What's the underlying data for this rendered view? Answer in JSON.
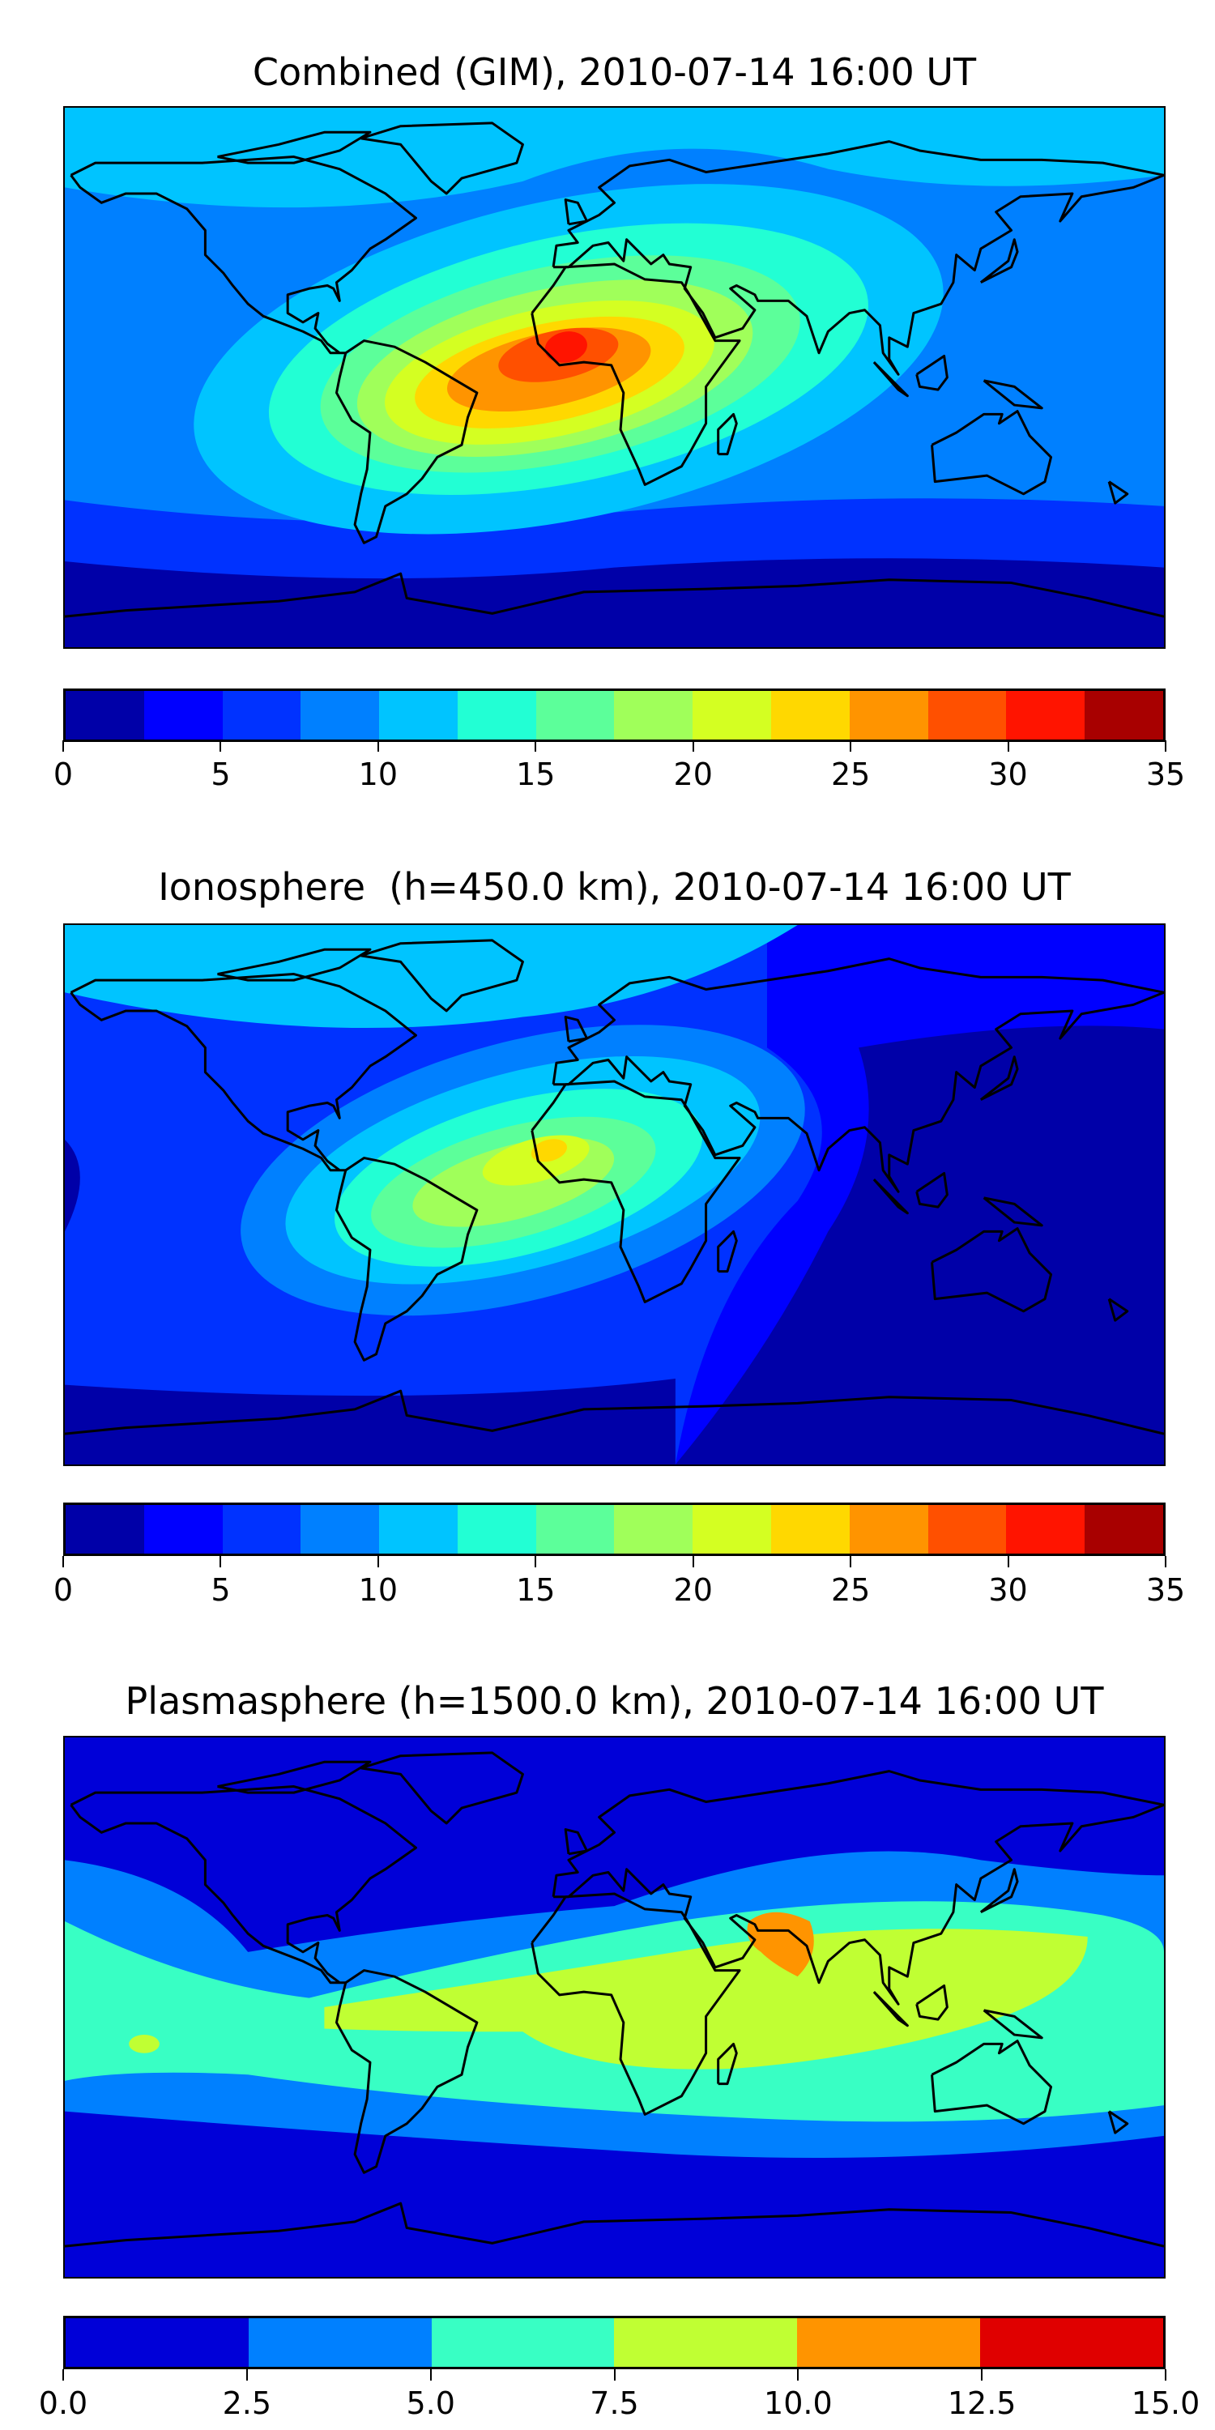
{
  "chart_data": [
    {
      "type": "heatmap",
      "title": "Combined (GIM), 2010-07-14 16:00 UT",
      "colorbar": {
        "range": [
          0,
          35
        ],
        "ticks": [
          "0",
          "5",
          "10",
          "15",
          "20",
          "25",
          "30",
          "35"
        ],
        "tick_values": [
          0,
          5,
          10,
          15,
          20,
          25,
          30,
          35
        ],
        "levels": [
          0,
          2.5,
          5,
          7.5,
          10,
          12.5,
          15,
          17.5,
          20,
          22.5,
          25,
          27.5,
          30,
          32.5,
          35
        ],
        "colors": [
          "#0000a8",
          "#0000ff",
          "#0032ff",
          "#0080ff",
          "#00c4ff",
          "#22ffd4",
          "#5cff9a",
          "#a0ff5a",
          "#d4ff22",
          "#ffd800",
          "#ff9400",
          "#ff5000",
          "#ff1400",
          "#a80000"
        ]
      },
      "max_region": "equatorial Atlantic / South America – West Africa, peak ~30-32.5",
      "xlabel": "",
      "ylabel": ""
    },
    {
      "type": "heatmap",
      "title": "Ionosphere  (h=450.0 km), 2010-07-14 16:00 UT",
      "colorbar": {
        "range": [
          0,
          35
        ],
        "ticks": [
          "0",
          "5",
          "10",
          "15",
          "20",
          "25",
          "30",
          "35"
        ],
        "tick_values": [
          0,
          5,
          10,
          15,
          20,
          25,
          30,
          35
        ],
        "levels": [
          0,
          2.5,
          5,
          7.5,
          10,
          12.5,
          15,
          17.5,
          20,
          22.5,
          25,
          27.5,
          30,
          32.5,
          35
        ],
        "colors": [
          "#0000a8",
          "#0000ff",
          "#0032ff",
          "#0080ff",
          "#00c4ff",
          "#22ffd4",
          "#5cff9a",
          "#a0ff5a",
          "#d4ff22",
          "#ffd800",
          "#ff9400",
          "#ff5000",
          "#ff1400",
          "#a80000"
        ]
      },
      "max_region": "equatorial Atlantic, peak ~22.5-25",
      "xlabel": "",
      "ylabel": ""
    },
    {
      "type": "heatmap",
      "title": "Plasmasphere (h=1500.0 km), 2010-07-14 16:00 UT",
      "colorbar": {
        "range": [
          0,
          15
        ],
        "ticks": [
          "0.0",
          "2.5",
          "5.0",
          "7.5",
          "10.0",
          "12.5",
          "15.0"
        ],
        "tick_values": [
          0,
          2.5,
          5,
          7.5,
          10,
          12.5,
          15
        ],
        "levels": [
          0,
          2.5,
          5,
          7.5,
          10,
          12.5,
          15
        ],
        "colors": [
          "#0000d8",
          "#0080ff",
          "#38ffc4",
          "#c0ff33",
          "#ff9400",
          "#e00000"
        ]
      },
      "max_region": "Arabian Sea, peak ~10-12.5",
      "xlabel": "",
      "ylabel": ""
    }
  ]
}
